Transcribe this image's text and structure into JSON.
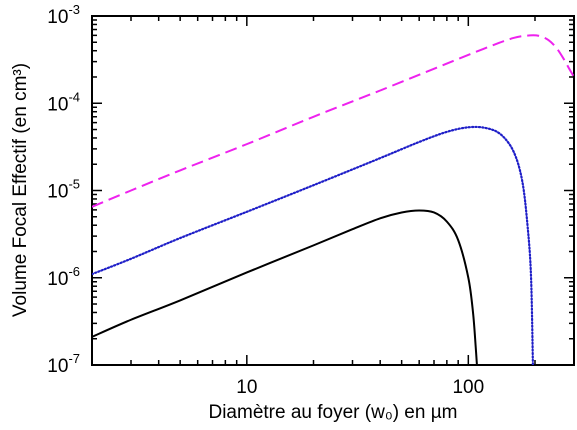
{
  "chart_data": {
    "type": "line",
    "xlabel": "Diamètre au foyer (w₀) en µm",
    "ylabel": "Volume Focal Effectif (en cm³)",
    "xscale": "log",
    "yscale": "log",
    "xlim": [
      2,
      300
    ],
    "ylim": [
      1e-07,
      0.001
    ],
    "grid": false,
    "legend": "none",
    "x_ticks": [
      {
        "value": 10,
        "label": "10"
      },
      {
        "value": 100,
        "label": "100"
      }
    ],
    "y_ticks": [
      {
        "value": 1e-07,
        "base": "10",
        "exp": "-7"
      },
      {
        "value": 1e-06,
        "base": "10",
        "exp": "-6"
      },
      {
        "value": 1e-05,
        "base": "10",
        "exp": "-5"
      },
      {
        "value": 0.0001,
        "base": "10",
        "exp": "-4"
      },
      {
        "value": 0.001,
        "base": "10",
        "exp": "-3"
      }
    ],
    "series": [
      {
        "style": "solid",
        "color": "#000000",
        "x": [
          2,
          3,
          5,
          10,
          20,
          30,
          40,
          50,
          60,
          70,
          80,
          90,
          100,
          105,
          108,
          110
        ],
        "y": [
          2.1e-07,
          3.3e-07,
          5.5e-07,
          1.15e-06,
          2.35e-06,
          3.6e-06,
          4.8e-06,
          5.6e-06,
          5.9e-06,
          5.6e-06,
          4.4e-06,
          2.7e-06,
          1e-06,
          4e-07,
          1.6e-07,
          8e-08
        ]
      },
      {
        "style": "dotted",
        "color": "#1f1fc8",
        "x": [
          2,
          3,
          5,
          10,
          20,
          40,
          60,
          80,
          100,
          120,
          140,
          160,
          175,
          185,
          192,
          196
        ],
        "y": [
          1.1e-06,
          1.65e-06,
          2.85e-06,
          5.7e-06,
          1.15e-05,
          2.35e-05,
          3.6e-05,
          4.7e-05,
          5.3e-05,
          5.2e-05,
          4.4e-05,
          2.8e-05,
          1.3e-05,
          4e-06,
          1e-06,
          8e-08
        ]
      },
      {
        "style": "dashed",
        "color": "#ee22ee",
        "x": [
          2,
          3,
          5,
          10,
          20,
          40,
          80,
          120,
          160,
          190,
          210,
          230,
          250,
          270,
          285,
          300
        ],
        "y": [
          6.5e-06,
          1e-05,
          1.7e-05,
          3.4e-05,
          7e-05,
          0.00014,
          0.000285,
          0.00043,
          0.00056,
          0.0006,
          0.00059,
          0.00053,
          0.00043,
          0.00032,
          0.00025,
          0.0002
        ]
      }
    ]
  }
}
